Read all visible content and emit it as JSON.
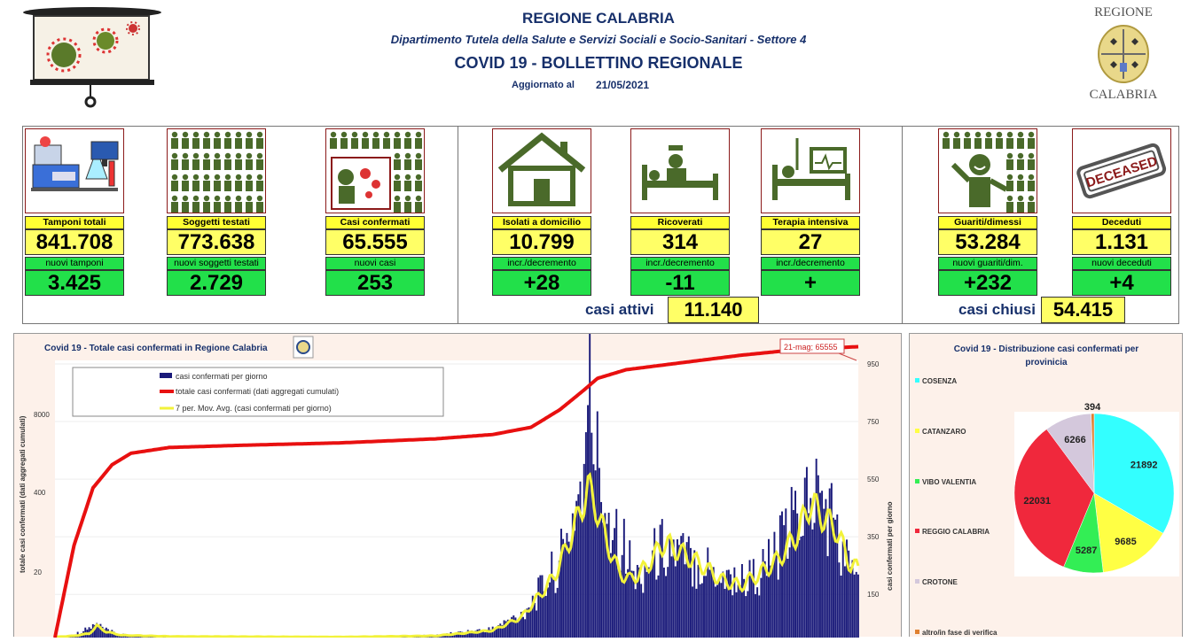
{
  "header": {
    "region_title": "REGIONE CALABRIA",
    "department": "Dipartimento Tutela della Salute e Servizi Sociali e Socio-Sanitari - Settore 4",
    "bulletin_title": "COVID 19 - BOLLETTINO REGIONALE",
    "updated_label": "Aggiornato al",
    "updated_date": "21/05/2021",
    "logo_top": "REGIONE",
    "logo_bottom": "CALABRIA"
  },
  "cards": [
    {
      "label1": "Tamponi totali",
      "value1": "841.708",
      "label2": "nuovi tamponi",
      "value2": "3.425"
    },
    {
      "label1": "Soggetti testati",
      "value1": "773.638",
      "label2": "nuovi soggetti testati",
      "value2": "2.729"
    },
    {
      "label1": "Casi confermati",
      "value1": "65.555",
      "label2": "nuovi casi",
      "value2": "253"
    },
    {
      "label1": "Isolati a domicilio",
      "value1": "10.799",
      "label2": "incr./decremento",
      "value2": "+28"
    },
    {
      "label1": "Ricoverati",
      "value1": "314",
      "label2": "incr./decremento",
      "value2": "-11"
    },
    {
      "label1": "Terapia intensiva",
      "value1": "27",
      "label2": "incr./decremento",
      "value2": "+"
    },
    {
      "label1": "Guariti/dimessi",
      "value1": "53.284",
      "label2": "nuovi guariti/dim.",
      "value2": "+232"
    },
    {
      "label1": "Deceduti",
      "value1": "1.131",
      "label2": "nuovi deceduti",
      "value2": "+4"
    }
  ],
  "deceased_stamp": "DECEASED",
  "summary": {
    "active_label": "casi attivi",
    "active_value": "11.140",
    "closed_label": "casi chiusi",
    "closed_value": "54.415"
  },
  "colors": {
    "title_blue": "#17306b",
    "yellow": "#ffff66",
    "green": "#22e04a",
    "bar_navy": "#1a1a7a",
    "line_red": "#e81010",
    "avg_yellow": "#f2f23a"
  },
  "chart_data": [
    {
      "type": "bar",
      "title": "Covid 19 - Totale casi confermati in Regione Calabria",
      "ylabel_left": "totale casi confermati (dati aggregati cumulati)",
      "ylabel_right": "casi confermati per giorno",
      "left_ticks": [
        "8000",
        "400",
        "20"
      ],
      "right_ticks": [
        950,
        750,
        550,
        350,
        150
      ],
      "right_ylim": [
        0,
        950
      ],
      "legend": [
        "casi confermati per giorno",
        "totale casi confermati (dati aggregati cumulati)",
        "7 per. Mov. Avg. (casi confermati per giorno)"
      ],
      "annotation": "21-mag; 65555",
      "series": [
        {
          "name": "casi confermati per giorno",
          "kind": "daily_bars",
          "values_segments": [
            [
              0,
              2
            ],
            [
              8,
              8
            ],
            [
              14,
              20
            ],
            [
              22,
              45
            ],
            [
              27,
              25
            ],
            [
              35,
              10
            ],
            [
              50,
              6
            ],
            [
              80,
              3
            ],
            [
              160,
              2
            ],
            [
              200,
              8
            ],
            [
              230,
              30
            ],
            [
              245,
              80
            ],
            [
              255,
              160
            ],
            [
              262,
              230
            ],
            [
              268,
              300
            ],
            [
              272,
              420
            ],
            [
              276,
              520
            ],
            [
              279,
              600
            ],
            [
              281,
              880
            ],
            [
              284,
              650
            ],
            [
              288,
              500
            ],
            [
              292,
              420
            ],
            [
              296,
              380
            ],
            [
              300,
              300
            ],
            [
              305,
              200
            ],
            [
              312,
              260
            ],
            [
              320,
              320
            ],
            [
              330,
              280
            ],
            [
              340,
              260
            ],
            [
              350,
              220
            ],
            [
              360,
              200
            ],
            [
              370,
              220
            ],
            [
              380,
              300
            ],
            [
              390,
              420
            ],
            [
              397,
              500
            ],
            [
              403,
              470
            ],
            [
              408,
              420
            ],
            [
              413,
              300
            ],
            [
              418,
              240
            ],
            [
              422,
              250
            ]
          ]
        },
        {
          "name": "totale casi confermati (dati aggregati cumulati)",
          "kind": "cumulative_line",
          "values_segments": [
            [
              0,
              0
            ],
            [
              10,
              320
            ],
            [
              20,
              520
            ],
            [
              30,
              600
            ],
            [
              40,
              640
            ],
            [
              60,
              660
            ],
            [
              100,
              668
            ],
            [
              150,
              676
            ],
            [
              200,
              690
            ],
            [
              230,
              705
            ],
            [
              250,
              730
            ],
            [
              265,
              790
            ],
            [
              278,
              860
            ],
            [
              285,
              900
            ],
            [
              300,
              930
            ],
            [
              330,
              955
            ],
            [
              360,
              980
            ],
            [
              390,
              1000
            ],
            [
              422,
              1010
            ]
          ]
        },
        {
          "name": "7 per. Mov. Avg. (casi confermati per giorno)",
          "kind": "moving_average_line",
          "values_segments": [
            [
              0,
              2
            ],
            [
              10,
              6
            ],
            [
              18,
              14
            ],
            [
              22,
              40
            ],
            [
              27,
              20
            ],
            [
              35,
              8
            ],
            [
              60,
              4
            ],
            [
              150,
              2
            ],
            [
              200,
              6
            ],
            [
              230,
              25
            ],
            [
              245,
              70
            ],
            [
              255,
              150
            ],
            [
              262,
              210
            ],
            [
              268,
              300
            ],
            [
              275,
              420
            ],
            [
              280,
              520
            ],
            [
              284,
              460
            ],
            [
              290,
              330
            ],
            [
              296,
              230
            ],
            [
              302,
              200
            ],
            [
              310,
              240
            ],
            [
              320,
              330
            ],
            [
              330,
              290
            ],
            [
              340,
              250
            ],
            [
              350,
              200
            ],
            [
              360,
              180
            ],
            [
              370,
              220
            ],
            [
              380,
              270
            ],
            [
              390,
              360
            ],
            [
              397,
              470
            ],
            [
              403,
              420
            ],
            [
              410,
              380
            ],
            [
              418,
              250
            ],
            [
              422,
              240
            ]
          ]
        }
      ]
    },
    {
      "type": "pie",
      "title": "Covid 19 - Distribuzione casi confermati per provinicia",
      "categories": [
        "COSENZA",
        "CATANZARO",
        "VIBO VALENTIA",
        "REGGIO CALABRIA",
        "CROTONE",
        "altro/in fase di verifica"
      ],
      "values": [
        21892,
        9685,
        5287,
        22031,
        6266,
        394
      ],
      "colors": [
        "#33ffff",
        "#ffff44",
        "#33ee55",
        "#f0283c",
        "#d4c8dc",
        "#e08030"
      ]
    }
  ]
}
